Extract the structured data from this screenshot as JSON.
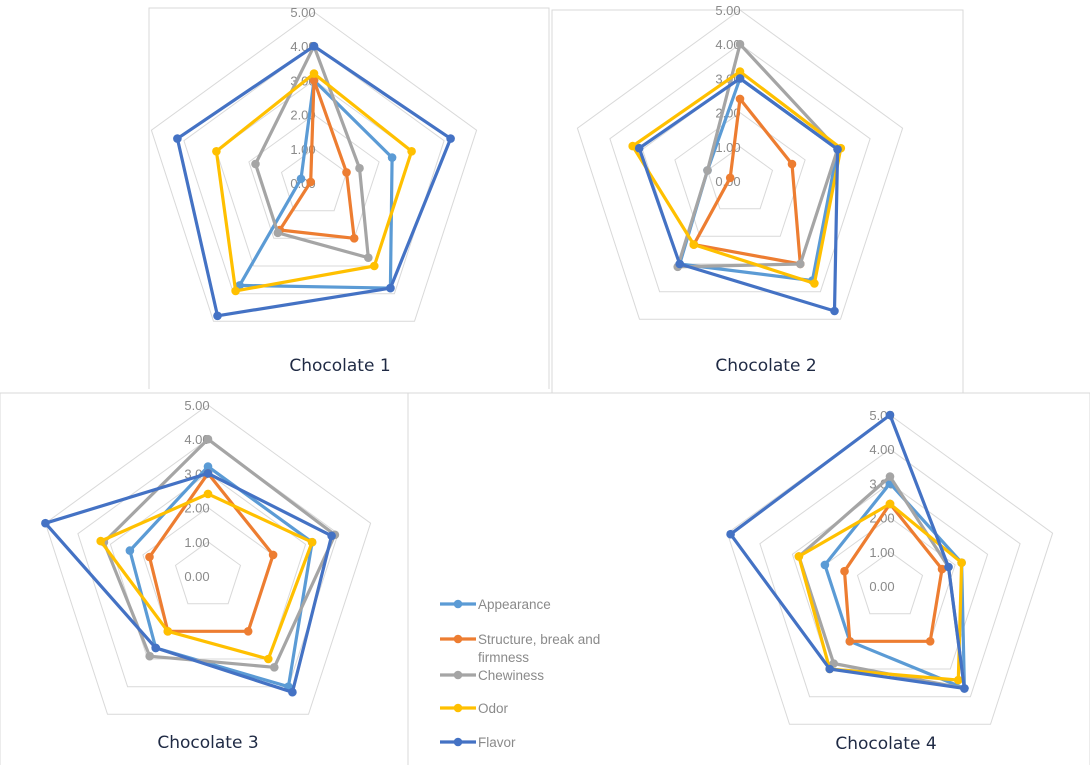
{
  "chart_data": [
    {
      "type": "radar",
      "title": "Chocolate 1",
      "ticks": [
        "0.00",
        "1.00",
        "2.00",
        "3.00",
        "4.00",
        "5.00"
      ],
      "rmax": 5,
      "series": [
        {
          "name": "Appearance",
          "values": [
            3.0,
            2.4,
            3.8,
            3.7,
            0.4
          ]
        },
        {
          "name": "Structure, break and firmness",
          "values": [
            3.0,
            1.0,
            2.0,
            1.7,
            0.1
          ]
        },
        {
          "name": "Chewiness",
          "values": [
            4.0,
            1.4,
            2.7,
            1.8,
            1.8
          ]
        },
        {
          "name": "Odor",
          "values": [
            3.2,
            3.0,
            3.0,
            3.9,
            3.0
          ]
        },
        {
          "name": "Flavor",
          "values": [
            4.0,
            4.2,
            3.8,
            4.8,
            4.2
          ]
        }
      ]
    },
    {
      "type": "radar",
      "title": "Chocolate 2",
      "ticks": [
        "0.00",
        "1.00",
        "2.00",
        "3.00",
        "4.00",
        "5.00"
      ],
      "rmax": 5,
      "series": [
        {
          "name": "Appearance",
          "values": [
            3.0,
            3.0,
            3.6,
            3.0,
            1.0
          ]
        },
        {
          "name": "Structure, break and firmness",
          "values": [
            2.4,
            1.6,
            3.0,
            2.3,
            0.3
          ]
        },
        {
          "name": "Chewiness",
          "values": [
            4.0,
            3.0,
            3.0,
            3.1,
            1.0
          ]
        },
        {
          "name": "Odor",
          "values": [
            3.2,
            3.1,
            3.7,
            2.3,
            3.3
          ]
        },
        {
          "name": "Flavor",
          "values": [
            3.0,
            3.0,
            4.7,
            3.0,
            3.1
          ]
        }
      ]
    },
    {
      "type": "radar",
      "title": "Chocolate 3",
      "ticks": [
        "0.00",
        "1.00",
        "2.00",
        "3.00",
        "4.00",
        "5.00"
      ],
      "rmax": 5,
      "series": [
        {
          "name": "Appearance",
          "values": [
            3.2,
            3.2,
            4.0,
            2.6,
            2.4
          ]
        },
        {
          "name": "Structure, break and firmness",
          "values": [
            3.0,
            2.0,
            2.0,
            2.0,
            1.8
          ]
        },
        {
          "name": "Chewiness",
          "values": [
            4.0,
            3.9,
            3.3,
            2.9,
            3.2
          ]
        },
        {
          "name": "Odor",
          "values": [
            2.4,
            3.2,
            3.0,
            2.0,
            3.3
          ]
        },
        {
          "name": "Flavor",
          "values": [
            3.0,
            3.8,
            4.2,
            2.6,
            5.0
          ]
        }
      ]
    },
    {
      "type": "radar",
      "title": "Chocolate 4",
      "ticks": [
        "0.00",
        "1.00",
        "2.00",
        "3.00",
        "4.00",
        "5.00"
      ],
      "rmax": 5,
      "series": [
        {
          "name": "Appearance",
          "values": [
            3.0,
            2.2,
            3.7,
            2.0,
            2.0
          ]
        },
        {
          "name": "Structure, break and firmness",
          "values": [
            2.4,
            1.6,
            2.0,
            2.0,
            1.4
          ]
        },
        {
          "name": "Chewiness",
          "values": [
            3.2,
            1.8,
            3.7,
            2.8,
            2.8
          ]
        },
        {
          "name": "Odor",
          "values": [
            2.4,
            2.2,
            3.4,
            3.0,
            2.8
          ]
        },
        {
          "name": "Flavor",
          "values": [
            5.0,
            1.8,
            3.7,
            3.0,
            4.9
          ]
        }
      ]
    }
  ],
  "legend": {
    "items": [
      {
        "label_lines": [
          "Appearance"
        ],
        "color": "#5b9bd5"
      },
      {
        "label_lines": [
          "Structure, break and",
          "firmness"
        ],
        "color": "#ed7d31"
      },
      {
        "label_lines": [
          "Chewiness"
        ],
        "color": "#a5a5a5"
      },
      {
        "label_lines": [
          "Odor"
        ],
        "color": "#ffc000"
      },
      {
        "label_lines": [
          "Flavor"
        ],
        "color": "#4472c4"
      }
    ]
  },
  "colors": [
    "#5b9bd5",
    "#ed7d31",
    "#a5a5a5",
    "#ffc000",
    "#4472c4"
  ],
  "grid_color": "#d9d9d9",
  "frame_color": "#d9d9d9"
}
